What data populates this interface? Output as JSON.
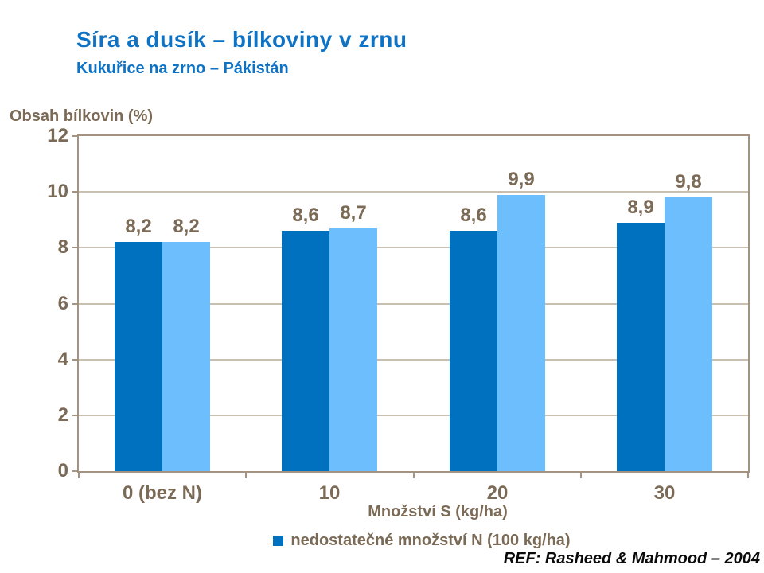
{
  "chart_data": {
    "type": "bar",
    "title": "Síra a dusík – bílkoviny v zrnu",
    "subtitle": "Kukuřice na zrno – Pákistán",
    "ylabel": "Obsah bílkovin (%)",
    "xlabel": "Množství S (kg/ha)",
    "ylim": [
      0,
      12
    ],
    "yticks": [
      0,
      2,
      4,
      6,
      8,
      10,
      12
    ],
    "ytick_labels": [
      "0",
      "2",
      "4",
      "6",
      "8",
      "10",
      "12"
    ],
    "grid": true,
    "categories": [
      "0 (bez N)",
      "10",
      "20",
      "30"
    ],
    "series": [
      {
        "name": "nedostatečné množství N (100 kg/ha)",
        "color": "#0071BE",
        "values": [
          8.2,
          8.6,
          8.6,
          8.9
        ],
        "value_labels": [
          "8,2",
          "8,6",
          "8,6",
          "8,9"
        ]
      },
      {
        "name": "",
        "color": "#6CBEFC",
        "values": [
          8.2,
          8.7,
          9.9,
          9.8
        ],
        "value_labels": [
          "8,2",
          "8,7",
          "9,9",
          "9,8"
        ]
      }
    ],
    "legend_position": "bottom",
    "legend_entries": [
      {
        "label": "nedostatečné množství N (100 kg/ha)",
        "color": "#0071BE"
      }
    ]
  },
  "footer": {
    "reference": "REF: Rasheed & Mahmood – 2004"
  },
  "colors": {
    "title_blue": "#0F73C5",
    "label_taupe": "#7B6A56",
    "axis_taupe": "#A49381",
    "grid_taupe": "#C9BFB1",
    "series_dark_blue": "#0071BE",
    "series_light_blue": "#6CBEFC"
  }
}
